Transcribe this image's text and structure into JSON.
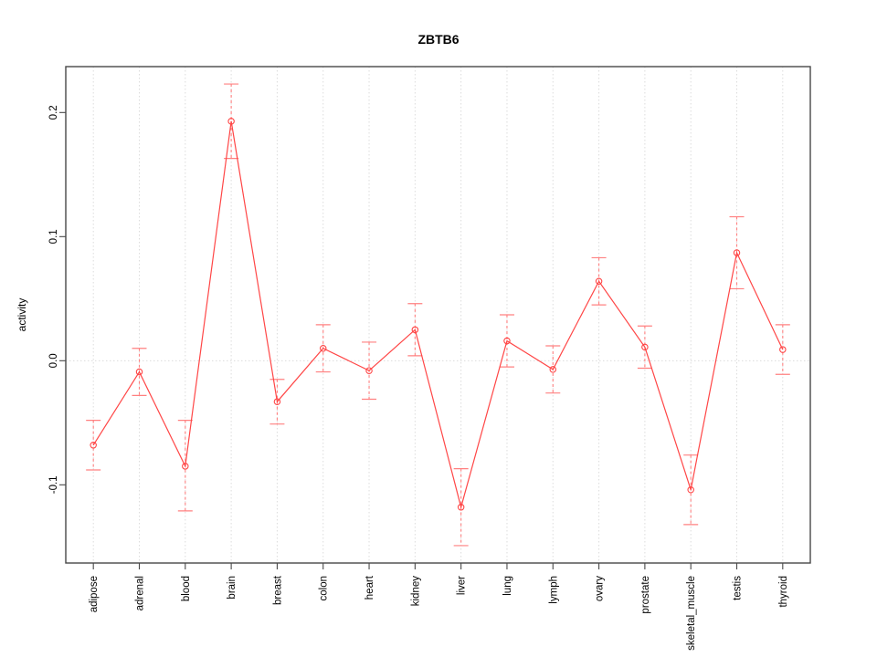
{
  "figure": {
    "kind": "r-statistical-plot"
  },
  "chart_data": {
    "type": "line",
    "title": "ZBTB6",
    "xlabel": "",
    "ylabel": "activity",
    "legend_position": "none",
    "categories": [
      "adipose",
      "adrenal",
      "blood",
      "brain",
      "breast",
      "colon",
      "heart",
      "kidney",
      "liver",
      "lung",
      "lymph",
      "ovary",
      "prostate",
      "skeletal_muscle",
      "testis",
      "thyroid"
    ],
    "values": [
      -0.068,
      -0.009,
      -0.085,
      0.193,
      -0.033,
      0.01,
      -0.008,
      0.025,
      -0.118,
      0.016,
      -0.007,
      0.064,
      0.011,
      -0.104,
      0.087,
      0.009
    ],
    "error_low": [
      -0.088,
      -0.028,
      -0.121,
      0.163,
      -0.051,
      -0.009,
      -0.031,
      0.004,
      -0.149,
      -0.005,
      -0.026,
      0.045,
      -0.006,
      -0.132,
      0.058,
      -0.011
    ],
    "error_high": [
      -0.048,
      0.01,
      -0.048,
      0.223,
      -0.015,
      0.029,
      0.015,
      0.046,
      -0.087,
      0.037,
      0.012,
      0.083,
      0.028,
      -0.076,
      0.116,
      0.029
    ],
    "ytick_labels": [
      "-0.1",
      "0.0",
      "0.1",
      "0.2"
    ],
    "ytick_values": [
      -0.1,
      0.0,
      0.1,
      0.2
    ],
    "ylim": [
      -0.163,
      0.237
    ],
    "grid": {
      "vertical_per_category": true,
      "horizontal_zero_line": true,
      "style": "dotted"
    },
    "marker": "open-circle",
    "error_bar_stem_style": "dashed",
    "colors": {
      "series": "#ff4646",
      "error_bar": "#ff8080",
      "grid": "#dcdcdc",
      "axis": "#484848",
      "text": "#000000",
      "background": "#ffffff"
    }
  }
}
